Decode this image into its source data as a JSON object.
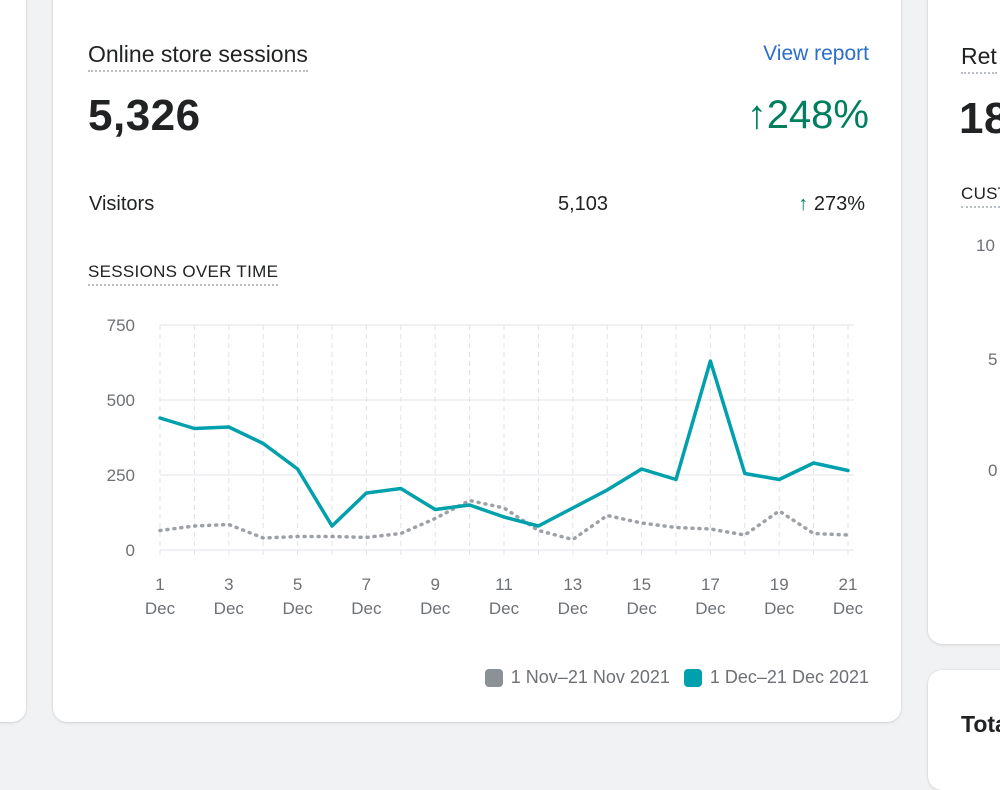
{
  "main": {
    "title": "Online store sessions",
    "view_report": "View report",
    "total": "5,326",
    "change": "248%",
    "visitors_label": "Visitors",
    "visitors_value": "5,103",
    "visitors_change": "273%",
    "section_title": "SESSIONS OVER TIME",
    "legend": [
      {
        "label": "1 Nov–21 Nov 2021",
        "color": "#8c9196"
      },
      {
        "label": "1 Dec–21 Dec 2021",
        "color": "#00a0ac"
      }
    ]
  },
  "right_card": {
    "title": "Ret",
    "big": "18",
    "subtitle": "CUST",
    "ticks": [
      "10",
      "5",
      "0"
    ]
  },
  "right_bottom_card": {
    "title": "Tota"
  },
  "chart_data": {
    "type": "line",
    "title": "SESSIONS OVER TIME",
    "xlabel": "",
    "ylabel": "",
    "ylim": [
      0,
      750
    ],
    "y_ticks": [
      "0",
      "250",
      "500",
      "750"
    ],
    "x": [
      1,
      2,
      3,
      4,
      5,
      6,
      7,
      8,
      9,
      10,
      11,
      12,
      13,
      14,
      15,
      16,
      17,
      18,
      19,
      20,
      21
    ],
    "x_tick_labels": [
      {
        "day": 1,
        "top": "1",
        "bottom": "Dec"
      },
      {
        "day": 3,
        "top": "3",
        "bottom": "Dec"
      },
      {
        "day": 5,
        "top": "5",
        "bottom": "Dec"
      },
      {
        "day": 7,
        "top": "7",
        "bottom": "Dec"
      },
      {
        "day": 9,
        "top": "9",
        "bottom": "Dec"
      },
      {
        "day": 11,
        "top": "11",
        "bottom": "Dec"
      },
      {
        "day": 13,
        "top": "13",
        "bottom": "Dec"
      },
      {
        "day": 15,
        "top": "15",
        "bottom": "Dec"
      },
      {
        "day": 17,
        "top": "17",
        "bottom": "Dec"
      },
      {
        "day": 19,
        "top": "19",
        "bottom": "Dec"
      },
      {
        "day": 21,
        "top": "21",
        "bottom": "Dec"
      }
    ],
    "series": [
      {
        "name": "1 Nov–21 Nov 2021",
        "style": "dotted",
        "color": "#8c9196",
        "values": [
          65,
          80,
          85,
          40,
          45,
          45,
          42,
          55,
          105,
          165,
          140,
          65,
          35,
          115,
          90,
          75,
          70,
          50,
          130,
          55,
          50
        ]
      },
      {
        "name": "1 Dec–21 Dec 2021",
        "style": "solid",
        "color": "#00a0ac",
        "values": [
          440,
          405,
          410,
          355,
          270,
          80,
          190,
          205,
          135,
          150,
          110,
          80,
          140,
          200,
          270,
          235,
          630,
          255,
          235,
          290,
          265
        ]
      }
    ]
  }
}
